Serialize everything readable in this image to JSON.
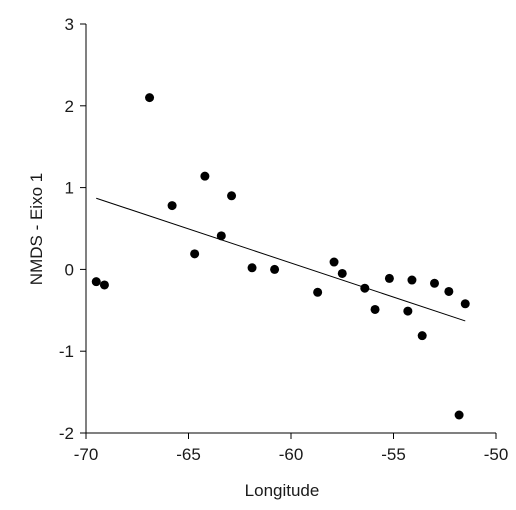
{
  "chart_data": {
    "type": "scatter",
    "xlabel": "Longitude",
    "ylabel": "NMDS - Eixo 1",
    "xlim": [
      -70,
      -50
    ],
    "ylim": [
      -2,
      3
    ],
    "x_ticks": [
      -70,
      -65,
      -60,
      -55,
      -50
    ],
    "y_ticks": [
      -2,
      -1,
      0,
      1,
      2,
      3
    ],
    "x_tick_labels": [
      "-70",
      "-65",
      "-60",
      "-55",
      "-50"
    ],
    "y_tick_labels": [
      "-2",
      "-1",
      "0",
      "1",
      "2",
      "3"
    ],
    "grid": false,
    "points": [
      {
        "x": -69.5,
        "y": -0.15
      },
      {
        "x": -69.1,
        "y": -0.19
      },
      {
        "x": -66.9,
        "y": 2.1
      },
      {
        "x": -65.8,
        "y": 0.78
      },
      {
        "x": -64.7,
        "y": 0.19
      },
      {
        "x": -64.2,
        "y": 1.14
      },
      {
        "x": -63.4,
        "y": 0.41
      },
      {
        "x": -62.9,
        "y": 0.9
      },
      {
        "x": -61.9,
        "y": 0.02
      },
      {
        "x": -60.8,
        "y": 0.0
      },
      {
        "x": -58.7,
        "y": -0.28
      },
      {
        "x": -57.9,
        "y": 0.09
      },
      {
        "x": -57.5,
        "y": -0.05
      },
      {
        "x": -56.4,
        "y": -0.23
      },
      {
        "x": -55.9,
        "y": -0.49
      },
      {
        "x": -55.2,
        "y": -0.11
      },
      {
        "x": -54.3,
        "y": -0.51
      },
      {
        "x": -54.1,
        "y": -0.13
      },
      {
        "x": -53.6,
        "y": -0.81
      },
      {
        "x": -53.0,
        "y": -0.17
      },
      {
        "x": -52.3,
        "y": -0.27
      },
      {
        "x": -51.8,
        "y": -1.78
      },
      {
        "x": -51.5,
        "y": -0.42
      }
    ],
    "fit_line": {
      "x": [
        -69.5,
        -51.5
      ],
      "y": [
        0.87,
        -0.63
      ]
    }
  }
}
